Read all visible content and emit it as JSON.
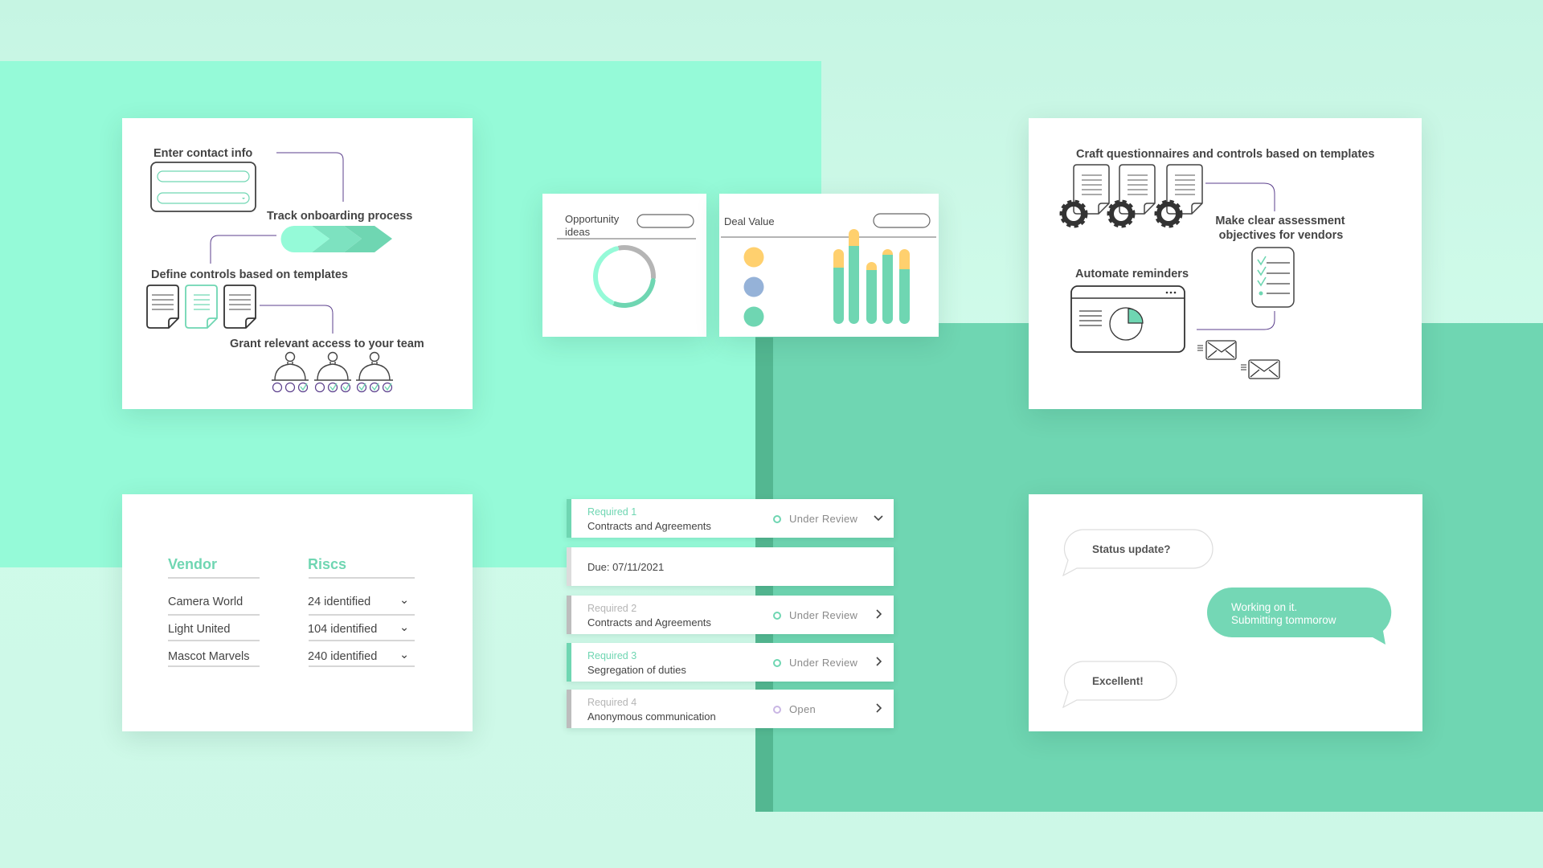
{
  "colors": {
    "mint": "#95fad8",
    "green": "#6fd6b2",
    "yellow": "#ffd06e",
    "blue": "#95b2d8",
    "purple": "#5b3f8c",
    "gray": "#b5b5b5",
    "text": "#444444"
  },
  "onboarding": {
    "step1": "Enter contact info",
    "step2": "Track onboarding process",
    "step3": "Define controls based on templates",
    "step4": "Grant relevant access to your team"
  },
  "opportunity": {
    "title_line1": "Opportunity",
    "title_line2": "ideas",
    "donut_segments": [
      {
        "color": "#b5b5b5",
        "fraction": 0.3
      },
      {
        "color": "#6fd6b2",
        "fraction": 0.3
      },
      {
        "color": "#95fad8",
        "fraction": 0.4
      }
    ]
  },
  "deal": {
    "title": "Deal Value",
    "legend_colors": [
      "#ffd06e",
      "#95b2d8",
      "#6fd6b2"
    ]
  },
  "chart_data": {
    "type": "bar",
    "stacked": true,
    "series": [
      {
        "color": "#6fd6b2",
        "values": [
          70,
          97,
          67,
          86,
          68
        ]
      },
      {
        "color": "#ffd06e",
        "values": [
          23,
          21,
          10,
          7,
          25
        ]
      }
    ]
  },
  "assessment": {
    "step1": "Craft questionnaires and controls based on templates",
    "step2_line1": "Make clear assessment",
    "step2_line2": "objectives for vendors",
    "step3": "Automate reminders"
  },
  "vendors": {
    "headers": [
      "Vendor",
      "Riscs"
    ],
    "rows": [
      {
        "vendor": "Camera World",
        "risks": "24 identified"
      },
      {
        "vendor": "Light United",
        "risks": "104 identified"
      },
      {
        "vendor": "Mascot Marvels",
        "risks": "240 identified"
      }
    ]
  },
  "requirements": [
    {
      "label": "Required 1",
      "title": "Contracts and Agreements",
      "status": "Under Review",
      "expanded": true,
      "active": true
    },
    {
      "due": "Due: 07/11/2021"
    },
    {
      "label": "Required 2",
      "title": "Contracts and Agreements",
      "status": "Under Review",
      "active": false
    },
    {
      "label": "Required 3",
      "title": "Segregation of duties",
      "status": "Under Review",
      "active": true
    },
    {
      "label": "Required 4",
      "title": "Anonymous communication",
      "status": "Open",
      "active": false
    }
  ],
  "chat": {
    "msg1": "Status update?",
    "msg2_line1": "Working on it.",
    "msg2_line2": "Submitting tommorow",
    "msg3": "Excellent!"
  }
}
